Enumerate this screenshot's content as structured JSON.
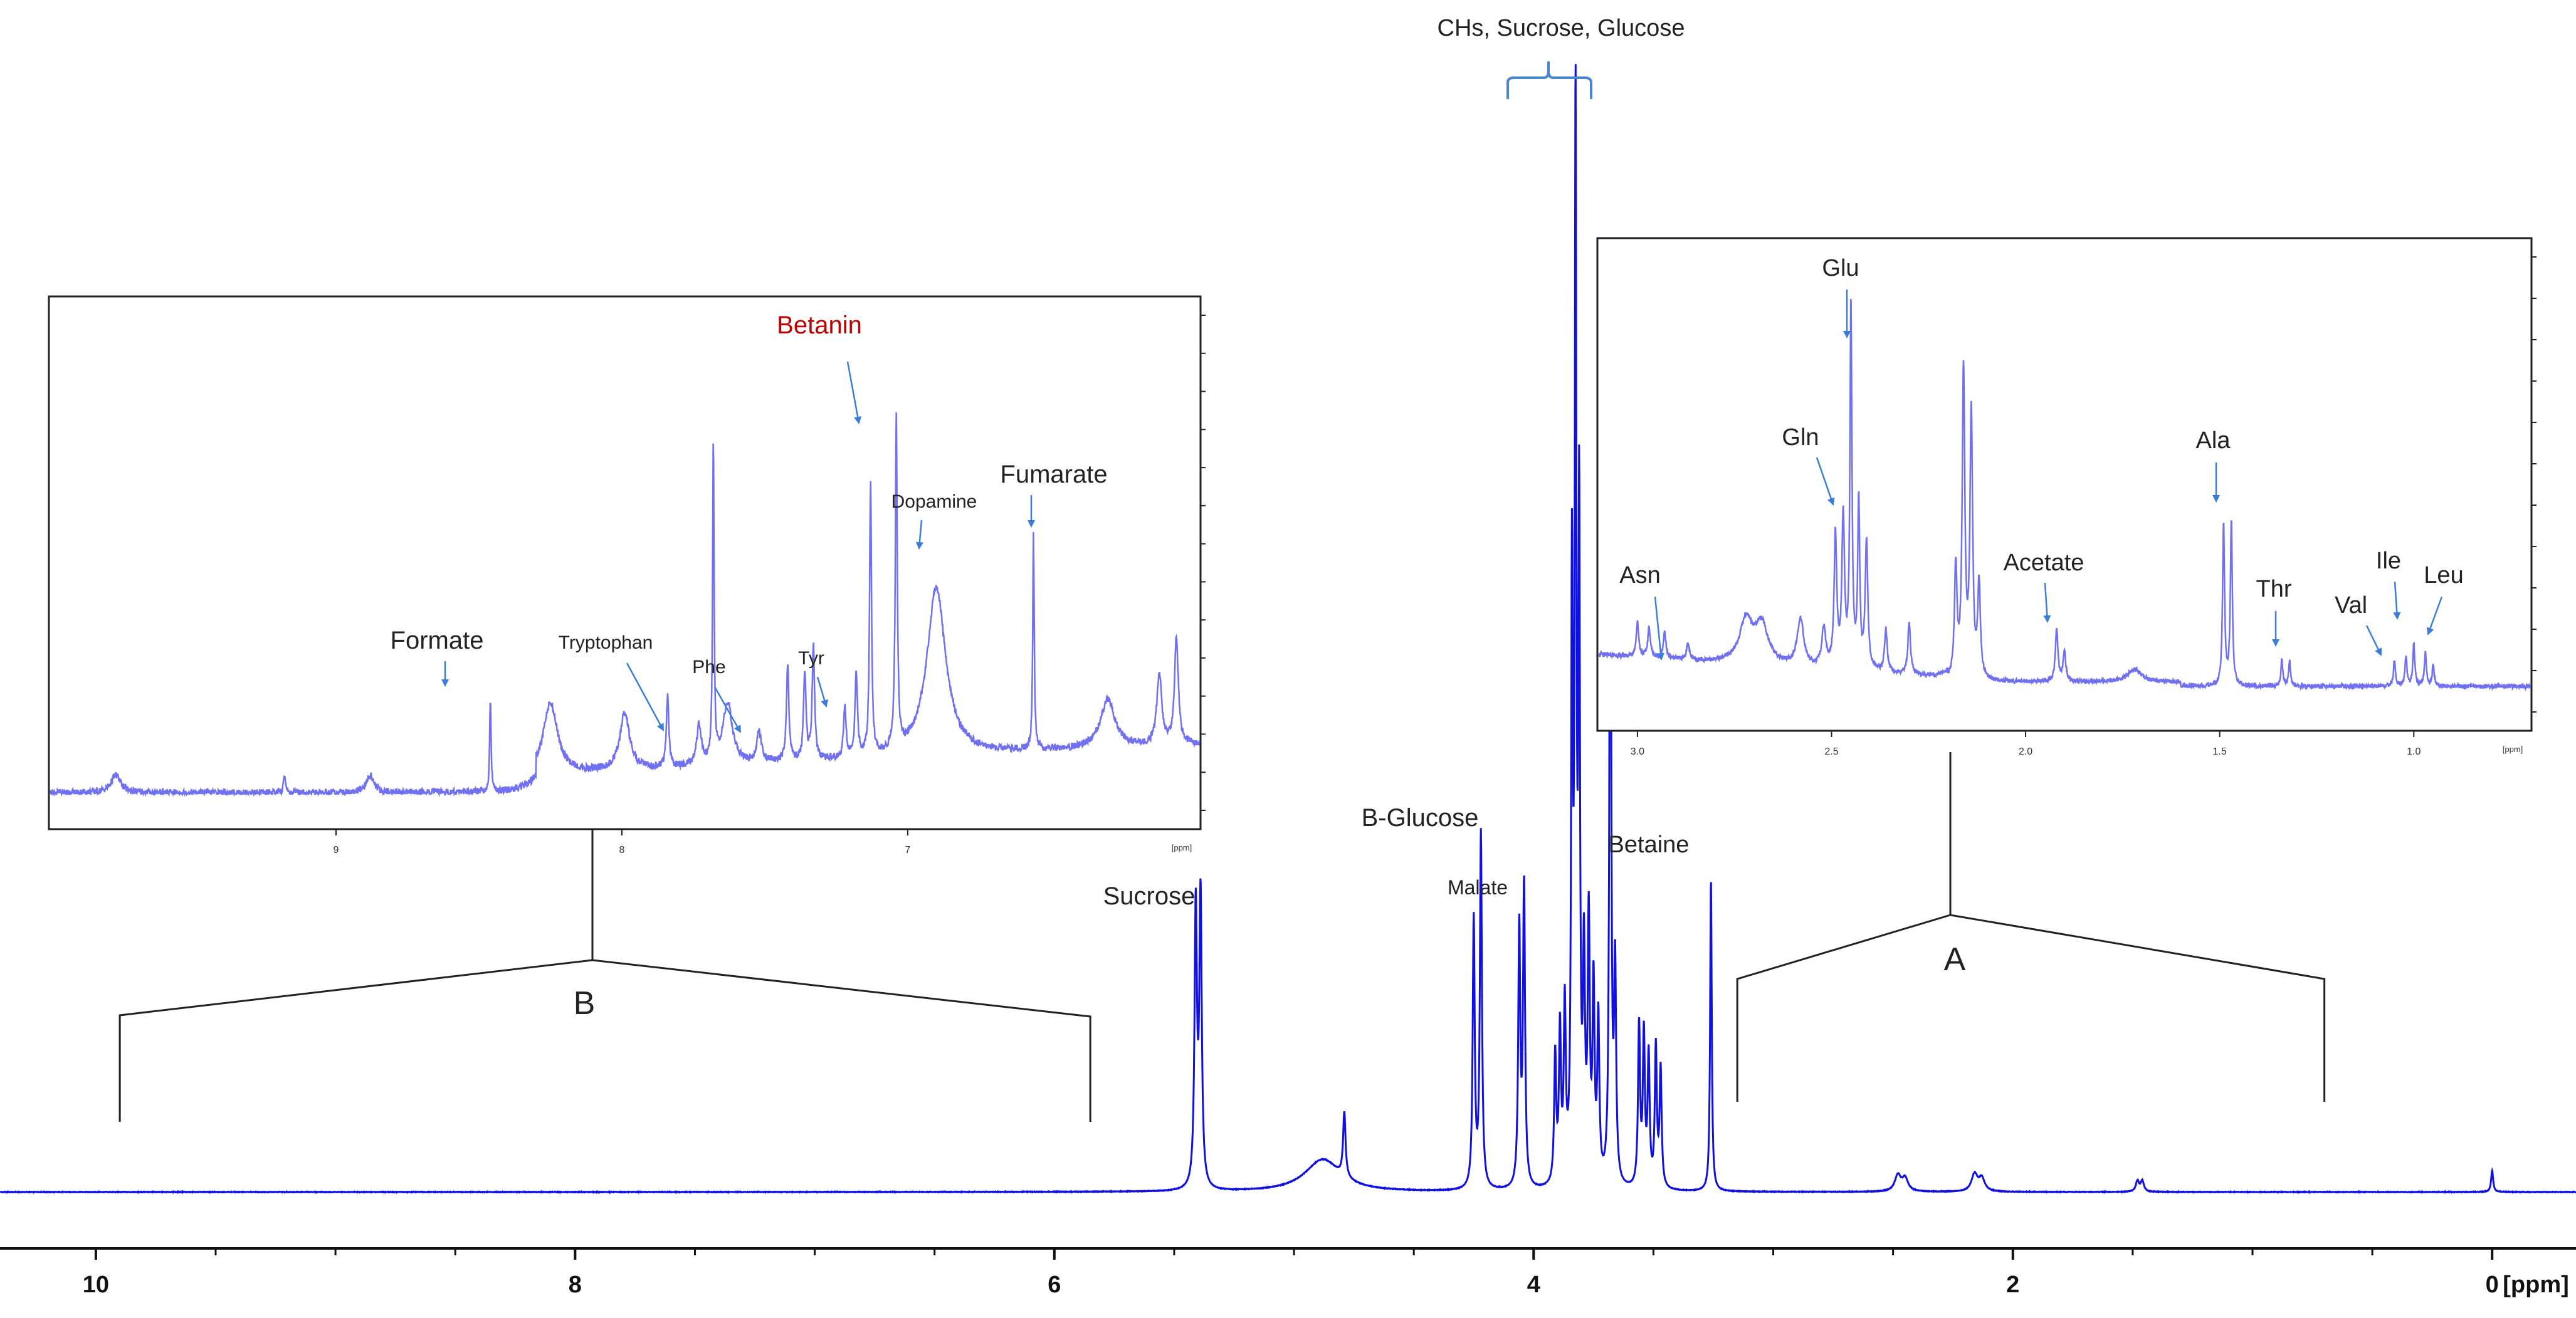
{
  "colors": {
    "main_spectrum": "#1010e0",
    "inset_spectrum": "#7070f0",
    "annotation_arrow": "#3a7fd5",
    "bracket_blue": "#4a86d0",
    "highlight_label": "#c00000",
    "text": "#222222",
    "frame": "#222222"
  },
  "chart_data": [
    {
      "type": "line",
      "title": "",
      "xlabel": "",
      "ylabel": "",
      "x_unit_label": "[ppm]",
      "x_reversed": true,
      "xlim": [
        10.4,
        -0.35
      ],
      "x_ticks": [
        10,
        8,
        6,
        4,
        2,
        0
      ],
      "x_tick_labels": [
        "10",
        "8",
        "6",
        "4",
        "2",
        "0"
      ],
      "ylim": [
        0,
        100
      ],
      "grid": false,
      "series": [
        {
          "peaks": [
            {
              "ppm": 5.41,
              "height": 26,
              "width": 0.006
            },
            {
              "ppm": 5.39,
              "height": 27,
              "width": 0.006
            },
            {
              "ppm": 4.88,
              "height": 3,
              "width": 0.09
            },
            {
              "ppm": 4.79,
              "height": 6,
              "width": 0.006
            },
            {
              "ppm": 4.25,
              "height": 25,
              "width": 0.005
            },
            {
              "ppm": 4.22,
              "height": 33,
              "width": 0.005
            },
            {
              "ppm": 4.06,
              "height": 24,
              "width": 0.005
            },
            {
              "ppm": 4.04,
              "height": 28,
              "width": 0.005
            },
            {
              "ppm": 3.91,
              "height": 12,
              "width": 0.005
            },
            {
              "ppm": 3.89,
              "height": 14,
              "width": 0.005
            },
            {
              "ppm": 3.87,
              "height": 16,
              "width": 0.005
            },
            {
              "ppm": 3.84,
              "height": 55,
              "width": 0.004
            },
            {
              "ppm": 3.825,
              "height": 97,
              "width": 0.004
            },
            {
              "ppm": 3.81,
              "height": 60,
              "width": 0.004
            },
            {
              "ppm": 3.79,
              "height": 20,
              "width": 0.005
            },
            {
              "ppm": 3.77,
              "height": 24,
              "width": 0.005
            },
            {
              "ppm": 3.75,
              "height": 18,
              "width": 0.005
            },
            {
              "ppm": 3.73,
              "height": 15,
              "width": 0.005
            },
            {
              "ppm": 3.68,
              "height": 81,
              "width": 0.004
            },
            {
              "ppm": 3.66,
              "height": 20,
              "width": 0.005
            },
            {
              "ppm": 3.56,
              "height": 15,
              "width": 0.005
            },
            {
              "ppm": 3.54,
              "height": 14,
              "width": 0.005
            },
            {
              "ppm": 3.52,
              "height": 12,
              "width": 0.005
            },
            {
              "ppm": 3.49,
              "height": 13,
              "width": 0.005
            },
            {
              "ppm": 3.47,
              "height": 11,
              "width": 0.005
            },
            {
              "ppm": 3.26,
              "height": 29,
              "width": 0.004
            },
            {
              "ppm": 2.48,
              "height": 1.5,
              "width": 0.015
            },
            {
              "ppm": 2.45,
              "height": 1.2,
              "width": 0.015
            },
            {
              "ppm": 2.16,
              "height": 1.6,
              "width": 0.015
            },
            {
              "ppm": 2.13,
              "height": 1.2,
              "width": 0.015
            },
            {
              "ppm": 1.48,
              "height": 1.0,
              "width": 0.008
            },
            {
              "ppm": 1.46,
              "height": 1.0,
              "width": 0.008
            },
            {
              "ppm": 0.0,
              "height": 2.0,
              "width": 0.005
            }
          ]
        }
      ],
      "annotations": [
        {
          "text": "CHs, Sucrose, Glucose",
          "ppm": 3.87
        },
        {
          "text": "Sucrose",
          "ppm": 5.4
        },
        {
          "text": "B-Glucose",
          "ppm": 4.22
        },
        {
          "text": "Malate",
          "ppm": 4.05
        },
        {
          "text": "Betaine",
          "ppm": 3.26
        }
      ],
      "regions": [
        {
          "label": "B",
          "from_ppm": 9.9,
          "to_ppm": 5.85
        },
        {
          "label": "A",
          "from_ppm": 3.15,
          "to_ppm": 0.7
        }
      ]
    },
    {
      "type": "line",
      "title": "",
      "x_unit_label": "[ppm]",
      "x_reversed": true,
      "xlim": [
        10.0,
        5.98
      ],
      "x_ticks": [
        9,
        8,
        7
      ],
      "x_tick_labels": [
        "9",
        "8",
        "7"
      ],
      "ylim": [
        0,
        100
      ],
      "grid": false,
      "series": [
        {
          "peaks": [
            {
              "ppm": 9.77,
              "height": 4,
              "width": 0.02
            },
            {
              "ppm": 9.18,
              "height": 4,
              "width": 0.004
            },
            {
              "ppm": 8.88,
              "height": 4,
              "width": 0.015
            },
            {
              "ppm": 8.46,
              "height": 21,
              "width": 0.003
            },
            {
              "ppm": 8.25,
              "height": 16,
              "width": 0.03
            },
            {
              "ppm": 7.99,
              "height": 13,
              "width": 0.02
            },
            {
              "ppm": 7.84,
              "height": 16,
              "width": 0.005
            },
            {
              "ppm": 7.73,
              "height": 9,
              "width": 0.01
            },
            {
              "ppm": 7.68,
              "height": 72,
              "width": 0.003
            },
            {
              "ppm": 7.63,
              "height": 14,
              "width": 0.02
            },
            {
              "ppm": 7.52,
              "height": 7,
              "width": 0.01
            },
            {
              "ppm": 7.42,
              "height": 22,
              "width": 0.005
            },
            {
              "ppm": 7.36,
              "height": 20,
              "width": 0.005
            },
            {
              "ppm": 7.33,
              "height": 26,
              "width": 0.005
            },
            {
              "ppm": 7.22,
              "height": 12,
              "width": 0.005
            },
            {
              "ppm": 7.18,
              "height": 19,
              "width": 0.005
            },
            {
              "ppm": 7.13,
              "height": 62,
              "width": 0.004
            },
            {
              "ppm": 7.04,
              "height": 75,
              "width": 0.004
            },
            {
              "ppm": 6.9,
              "height": 38,
              "width": 0.04
            },
            {
              "ppm": 6.56,
              "height": 49,
              "width": 0.003
            },
            {
              "ppm": 6.3,
              "height": 11,
              "width": 0.03
            },
            {
              "ppm": 6.12,
              "height": 16,
              "width": 0.01
            },
            {
              "ppm": 6.06,
              "height": 24,
              "width": 0.008
            }
          ]
        }
      ],
      "annotations": [
        {
          "text": "Formate",
          "ppm": 8.46,
          "color": "default"
        },
        {
          "text": "Tryptophan",
          "ppm": 7.73,
          "color": "default"
        },
        {
          "text": "Phe",
          "ppm": 7.52,
          "color": "default"
        },
        {
          "text": "Tyr",
          "ppm": 7.2,
          "color": "default"
        },
        {
          "text": "Betanin",
          "ppm": 7.04,
          "color": "highlight"
        },
        {
          "text": "Dopamine",
          "ppm": 6.9,
          "color": "default"
        },
        {
          "text": "Fumarate",
          "ppm": 6.56,
          "color": "default"
        }
      ]
    },
    {
      "type": "line",
      "title": "",
      "x_unit_label": "[ppm]",
      "x_reversed": true,
      "xlim": [
        3.1,
        0.7
      ],
      "x_ticks": [
        3.0,
        2.5,
        2.0,
        1.5,
        1.0
      ],
      "x_tick_labels": [
        "3.0",
        "2.5",
        "2.0",
        "1.5",
        "1.0"
      ],
      "ylim": [
        0,
        100
      ],
      "grid": false,
      "series": [
        {
          "peaks": [
            {
              "ppm": 3.0,
              "height": 8,
              "width": 0.004
            },
            {
              "ppm": 2.97,
              "height": 7,
              "width": 0.004
            },
            {
              "ppm": 2.93,
              "height": 6,
              "width": 0.004
            },
            {
              "ppm": 2.87,
              "height": 4,
              "width": 0.004
            },
            {
              "ppm": 2.72,
              "height": 10,
              "width": 0.02
            },
            {
              "ppm": 2.68,
              "height": 9,
              "width": 0.02
            },
            {
              "ppm": 2.58,
              "height": 11,
              "width": 0.01
            },
            {
              "ppm": 2.52,
              "height": 9,
              "width": 0.006
            },
            {
              "ppm": 2.49,
              "height": 31,
              "width": 0.004
            },
            {
              "ppm": 2.47,
              "height": 35,
              "width": 0.004
            },
            {
              "ppm": 2.45,
              "height": 85,
              "width": 0.003
            },
            {
              "ppm": 2.43,
              "height": 39,
              "width": 0.003
            },
            {
              "ppm": 2.41,
              "height": 30,
              "width": 0.004
            },
            {
              "ppm": 2.36,
              "height": 10,
              "width": 0.004
            },
            {
              "ppm": 2.3,
              "height": 12,
              "width": 0.004
            },
            {
              "ppm": 2.18,
              "height": 26,
              "width": 0.004
            },
            {
              "ppm": 2.16,
              "height": 72,
              "width": 0.004
            },
            {
              "ppm": 2.14,
              "height": 62,
              "width": 0.004
            },
            {
              "ppm": 2.12,
              "height": 22,
              "width": 0.004
            },
            {
              "ppm": 1.92,
              "height": 12,
              "width": 0.004
            },
            {
              "ppm": 1.9,
              "height": 7,
              "width": 0.004
            },
            {
              "ppm": 1.72,
              "height": 3,
              "width": 0.02
            },
            {
              "ppm": 1.49,
              "height": 38,
              "width": 0.003
            },
            {
              "ppm": 1.47,
              "height": 38,
              "width": 0.003
            },
            {
              "ppm": 1.34,
              "height": 6,
              "width": 0.003
            },
            {
              "ppm": 1.32,
              "height": 6,
              "width": 0.003
            },
            {
              "ppm": 1.05,
              "height": 6,
              "width": 0.003
            },
            {
              "ppm": 1.02,
              "height": 7,
              "width": 0.003
            },
            {
              "ppm": 1.0,
              "height": 10,
              "width": 0.003
            },
            {
              "ppm": 0.97,
              "height": 8,
              "width": 0.003
            },
            {
              "ppm": 0.95,
              "height": 5,
              "width": 0.003
            }
          ]
        }
      ],
      "annotations": [
        {
          "text": "Glu",
          "ppm": 2.45,
          "color": "default"
        },
        {
          "text": "Gln",
          "ppm": 2.49,
          "color": "default"
        },
        {
          "text": "Asn",
          "ppm": 2.93,
          "color": "default"
        },
        {
          "text": "Acetate",
          "ppm": 1.92,
          "color": "default"
        },
        {
          "text": "Ala",
          "ppm": 1.48,
          "color": "default"
        },
        {
          "text": "Thr",
          "ppm": 1.33,
          "color": "default"
        },
        {
          "text": "Val",
          "ppm": 1.04,
          "color": "default"
        },
        {
          "text": "Ile",
          "ppm": 1.0,
          "color": "default"
        },
        {
          "text": "Leu",
          "ppm": 0.95,
          "color": "default"
        }
      ]
    }
  ]
}
